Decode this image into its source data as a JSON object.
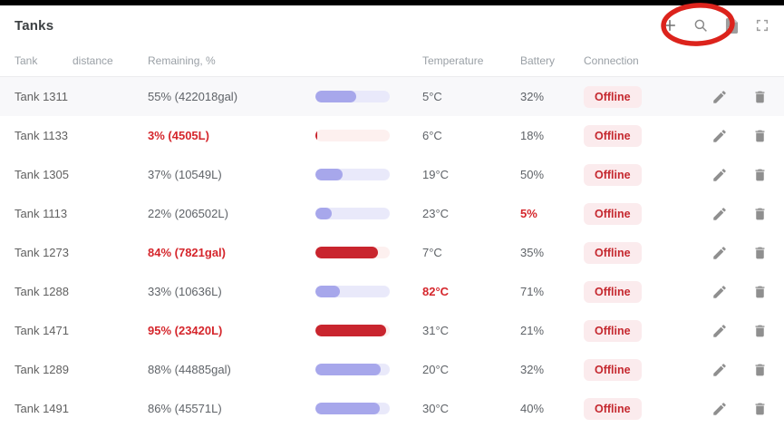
{
  "header": {
    "title": "Tanks",
    "toolbar": {
      "add_label": "+",
      "icons": [
        "plus",
        "search",
        "export-file",
        "fullscreen"
      ]
    }
  },
  "columns": [
    "Tank",
    "distance",
    "Remaining, %",
    "Temperature",
    "Battery",
    "Connection"
  ],
  "rows": [
    {
      "tank": "Tank 1311",
      "remaining": "55% (422018gal)",
      "remaining_pct": 55,
      "remaining_alert": false,
      "temperature": "5°C",
      "temperature_alert": false,
      "battery": "32%",
      "battery_alert": false,
      "connection": "Offline",
      "highlighted": true
    },
    {
      "tank": "Tank 1133",
      "remaining": "3% (4505L)",
      "remaining_pct": 3,
      "remaining_alert": true,
      "temperature": "6°C",
      "temperature_alert": false,
      "battery": "18%",
      "battery_alert": false,
      "connection": "Offline",
      "highlighted": false
    },
    {
      "tank": "Tank 1305",
      "remaining": "37% (10549L)",
      "remaining_pct": 37,
      "remaining_alert": false,
      "temperature": "19°C",
      "temperature_alert": false,
      "battery": "50%",
      "battery_alert": false,
      "connection": "Offline",
      "highlighted": false
    },
    {
      "tank": "Tank 1113",
      "remaining": "22% (206502L)",
      "remaining_pct": 22,
      "remaining_alert": false,
      "temperature": "23°C",
      "temperature_alert": false,
      "battery": "5%",
      "battery_alert": true,
      "connection": "Offline",
      "highlighted": false
    },
    {
      "tank": "Tank 1273",
      "remaining": "84% (7821gal)",
      "remaining_pct": 84,
      "remaining_alert": true,
      "temperature": "7°C",
      "temperature_alert": false,
      "battery": "35%",
      "battery_alert": false,
      "connection": "Offline",
      "highlighted": false
    },
    {
      "tank": "Tank 1288",
      "remaining": "33% (10636L)",
      "remaining_pct": 33,
      "remaining_alert": false,
      "temperature": "82°C",
      "temperature_alert": true,
      "battery": "71%",
      "battery_alert": false,
      "connection": "Offline",
      "highlighted": false
    },
    {
      "tank": "Tank 1471",
      "remaining": "95% (23420L)",
      "remaining_pct": 95,
      "remaining_alert": true,
      "temperature": "31°C",
      "temperature_alert": false,
      "battery": "21%",
      "battery_alert": false,
      "connection": "Offline",
      "highlighted": false
    },
    {
      "tank": "Tank 1289",
      "remaining": "88% (44885gal)",
      "remaining_pct": 88,
      "remaining_alert": false,
      "temperature": "20°C",
      "temperature_alert": false,
      "battery": "32%",
      "battery_alert": false,
      "connection": "Offline",
      "highlighted": false
    },
    {
      "tank": "Tank 1491",
      "remaining": "86% (45571L)",
      "remaining_pct": 86,
      "remaining_alert": false,
      "temperature": "30°C",
      "temperature_alert": false,
      "battery": "40%",
      "battery_alert": false,
      "connection": "Offline",
      "highlighted": false
    }
  ],
  "colors": {
    "bar_fill": "#a7a7eb",
    "bar_track": "#e9e9fa",
    "bar_fill_alert": "#c9252e",
    "bar_track_alert": "#fdf0ef",
    "alert_text": "#d5262c",
    "badge_bg": "#fbebed",
    "badge_text": "#c5282f",
    "annotation_red": "#dc231c"
  },
  "annotation": {
    "shape": "ellipse",
    "target": "add-button"
  }
}
